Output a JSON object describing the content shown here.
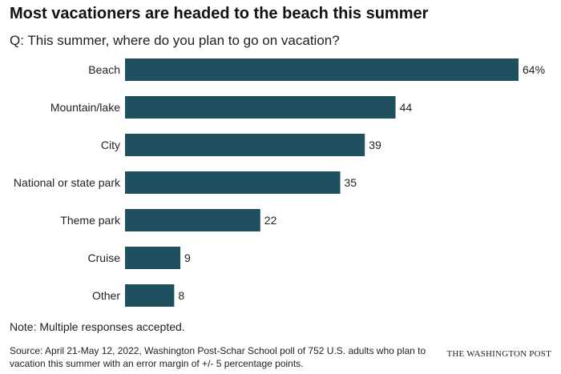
{
  "header": {
    "title": "Most vacationers are headed to the beach this summer",
    "subtitle": "Q: This summer, where do you plan to go on vacation?"
  },
  "chart_data": {
    "type": "bar",
    "orientation": "horizontal",
    "categories": [
      "Beach",
      "Mountain/lake",
      "City",
      "National or state park",
      "Theme park",
      "Cruise",
      "Other"
    ],
    "values": [
      64,
      44,
      39,
      35,
      22,
      9,
      8
    ],
    "value_labels": [
      "64%",
      "44",
      "39",
      "35",
      "22",
      "9",
      "8"
    ],
    "unit": "%",
    "xlim": [
      0,
      64
    ],
    "grid": false,
    "legend": "none",
    "bar_color": "#1f5060"
  },
  "footer": {
    "note": "Note: Multiple responses accepted.",
    "source": "Source: April 21-May 12, 2022, Washington Post-Schar School poll of 752 U.S. adults who plan to vacation this summer with an error margin of +/- 5 percentage points.",
    "brand": "THE WASHINGTON POST"
  }
}
